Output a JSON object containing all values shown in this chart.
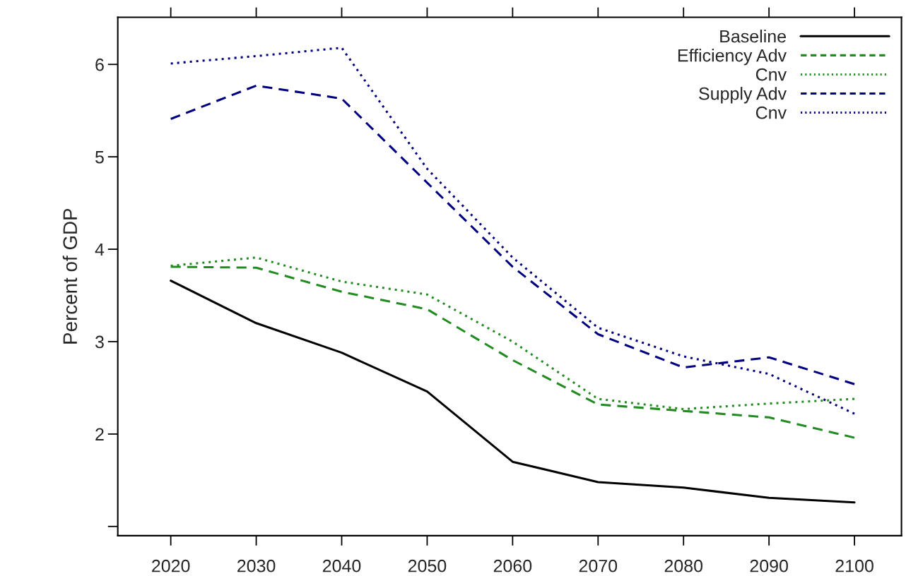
{
  "chart_data": {
    "type": "line",
    "ylabel": "Percent of GDP",
    "x": [
      2020,
      2030,
      2040,
      2050,
      2060,
      2070,
      2080,
      2090,
      2100
    ],
    "xlim": [
      2013.8,
      2105.5
    ],
    "xticks": [
      2020,
      2030,
      2040,
      2050,
      2060,
      2070,
      2080,
      2090,
      2100
    ],
    "ylim": [
      0.9,
      6.51
    ],
    "yticks": [
      {
        "value": 1,
        "label": null
      },
      2,
      3,
      4,
      5,
      6
    ],
    "grid": false,
    "legend": "top right",
    "series": [
      {
        "name": "Baseline",
        "color": "#000000",
        "line_style": "solid",
        "values": [
          3.66,
          3.2,
          2.88,
          2.46,
          1.7,
          1.48,
          1.42,
          1.31,
          1.26
        ]
      },
      {
        "name": "Efficiency Adv",
        "color": "#228b22",
        "line_style": "dashed",
        "values": [
          3.81,
          3.8,
          3.54,
          3.35,
          2.8,
          2.32,
          2.25,
          2.18,
          1.96
        ]
      },
      {
        "name": "Cnv",
        "color": "#228b22",
        "line_style": "dotted",
        "values": [
          3.82,
          3.91,
          3.65,
          3.51,
          3.0,
          2.38,
          2.27,
          2.33,
          2.38
        ]
      },
      {
        "name": "Supply Adv",
        "color": "#000080",
        "line_style": "dashed",
        "values": [
          5.41,
          5.77,
          5.63,
          4.72,
          3.81,
          3.08,
          2.72,
          2.83,
          2.54
        ]
      },
      {
        "name": "Cnv",
        "color": "#000080",
        "line_style": "dotted",
        "values": [
          6.01,
          6.09,
          6.18,
          4.87,
          3.91,
          3.15,
          2.84,
          2.65,
          2.22
        ]
      }
    ]
  }
}
